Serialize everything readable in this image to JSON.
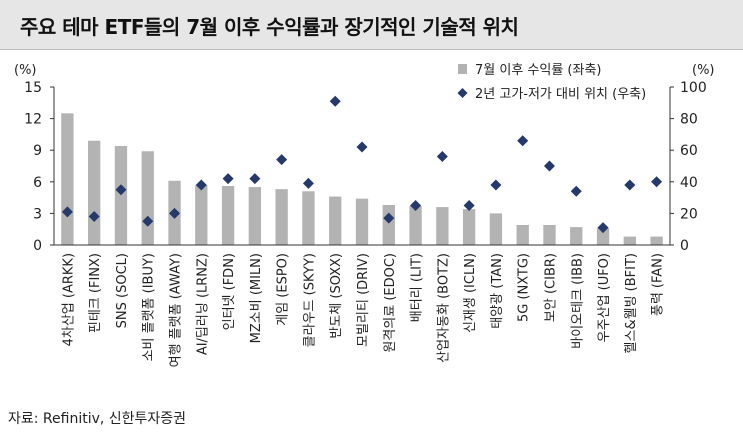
{
  "title": "주요 테마 ETF들의 7월 이후 수익률과 장기적인 기술적 위치",
  "source": "자료: Refinitiv, 신한투자증권",
  "colors": {
    "bar": "#b3b3b3",
    "point": "#253a6b",
    "axis": "#333333"
  },
  "chart_data": {
    "type": "bar",
    "title": "주요 테마 ETF들의 7월 이후 수익률과 장기적인 기술적 위치",
    "left_axis": {
      "unit": "(%)",
      "min": 0,
      "max": 15,
      "ticks": [
        0,
        3,
        6,
        9,
        12,
        15
      ]
    },
    "right_axis": {
      "unit": "(%)",
      "min": 0,
      "max": 100,
      "ticks": [
        0,
        20,
        40,
        60,
        80,
        100
      ]
    },
    "legend_position": "top-right",
    "grid": false,
    "categories": [
      "4차산업 (ARKK)",
      "핀테크 (FINX)",
      "SNS (SOCL)",
      "소비 플랫폼 (IBUY)",
      "여행 플랫폼 (AWAY)",
      "AI/딥러닝 (LRNZ)",
      "인터넷 (FDN)",
      "MZ소비 (MILN)",
      "게임 (ESPO)",
      "클라우드 (SKYY)",
      "반도체 (SOXX)",
      "모빌리티 (DRIV)",
      "원격의료 (EDOC)",
      "배터리 (LIT)",
      "산업자동화 (BOTZ)",
      "신재생 (ICLN)",
      "태양광 (TAN)",
      "5G (NXTG)",
      "보안 (CIBR)",
      "바이오테크 (IBB)",
      "우주산업 (UFO)",
      "헬스&웰빙 (BFIT)",
      "풍력 (FAN)"
    ],
    "series": [
      {
        "name": "7월 이후 수익률 (좌축)",
        "type": "bar",
        "axis": "left",
        "values": [
          12.5,
          9.9,
          9.4,
          8.9,
          6.1,
          5.7,
          5.6,
          5.5,
          5.3,
          5.1,
          4.6,
          4.4,
          3.8,
          3.7,
          3.6,
          3.4,
          3.0,
          1.9,
          1.9,
          1.7,
          1.6,
          0.8,
          0.8
        ]
      },
      {
        "name": "2년 고가-저가 대비 위치 (우축)",
        "type": "scatter",
        "axis": "right",
        "values": [
          21,
          18,
          35,
          15,
          20,
          38,
          42,
          42,
          54,
          39,
          91,
          62,
          17,
          25,
          56,
          25,
          38,
          66,
          50,
          34,
          11,
          38,
          40
        ]
      }
    ]
  }
}
